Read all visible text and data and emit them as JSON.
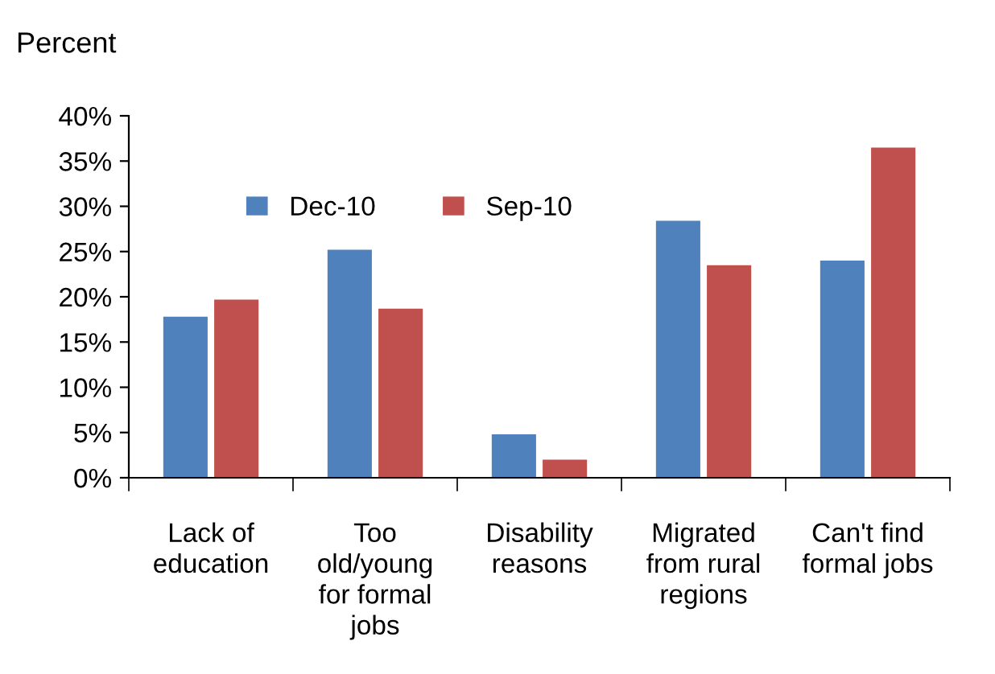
{
  "chart_data": {
    "type": "bar",
    "ylabel": "Percent",
    "categories": [
      "Lack of education",
      "Too old/young for formal jobs",
      "Disability reasons",
      "Migrated from rural regions",
      "Can't find formal jobs"
    ],
    "series": [
      {
        "name": "Dec-10",
        "color": "#4f81bd",
        "values": [
          17.8,
          25.2,
          4.8,
          28.4,
          24.0
        ]
      },
      {
        "name": "Sep-10",
        "color": "#c0504d",
        "values": [
          19.7,
          18.7,
          2.0,
          23.5,
          36.5
        ]
      }
    ],
    "ylim": [
      0,
      40
    ],
    "yticks": [
      {
        "value": 0,
        "label": "0%"
      },
      {
        "value": 5,
        "label": "5%"
      },
      {
        "value": 10,
        "label": "10%"
      },
      {
        "value": 15,
        "label": "15%"
      },
      {
        "value": 20,
        "label": "20%"
      },
      {
        "value": 25,
        "label": "25%"
      },
      {
        "value": 30,
        "label": "30%"
      },
      {
        "value": 35,
        "label": "35%"
      },
      {
        "value": 40,
        "label": "40%"
      }
    ],
    "grid": false,
    "legend": "top left"
  }
}
